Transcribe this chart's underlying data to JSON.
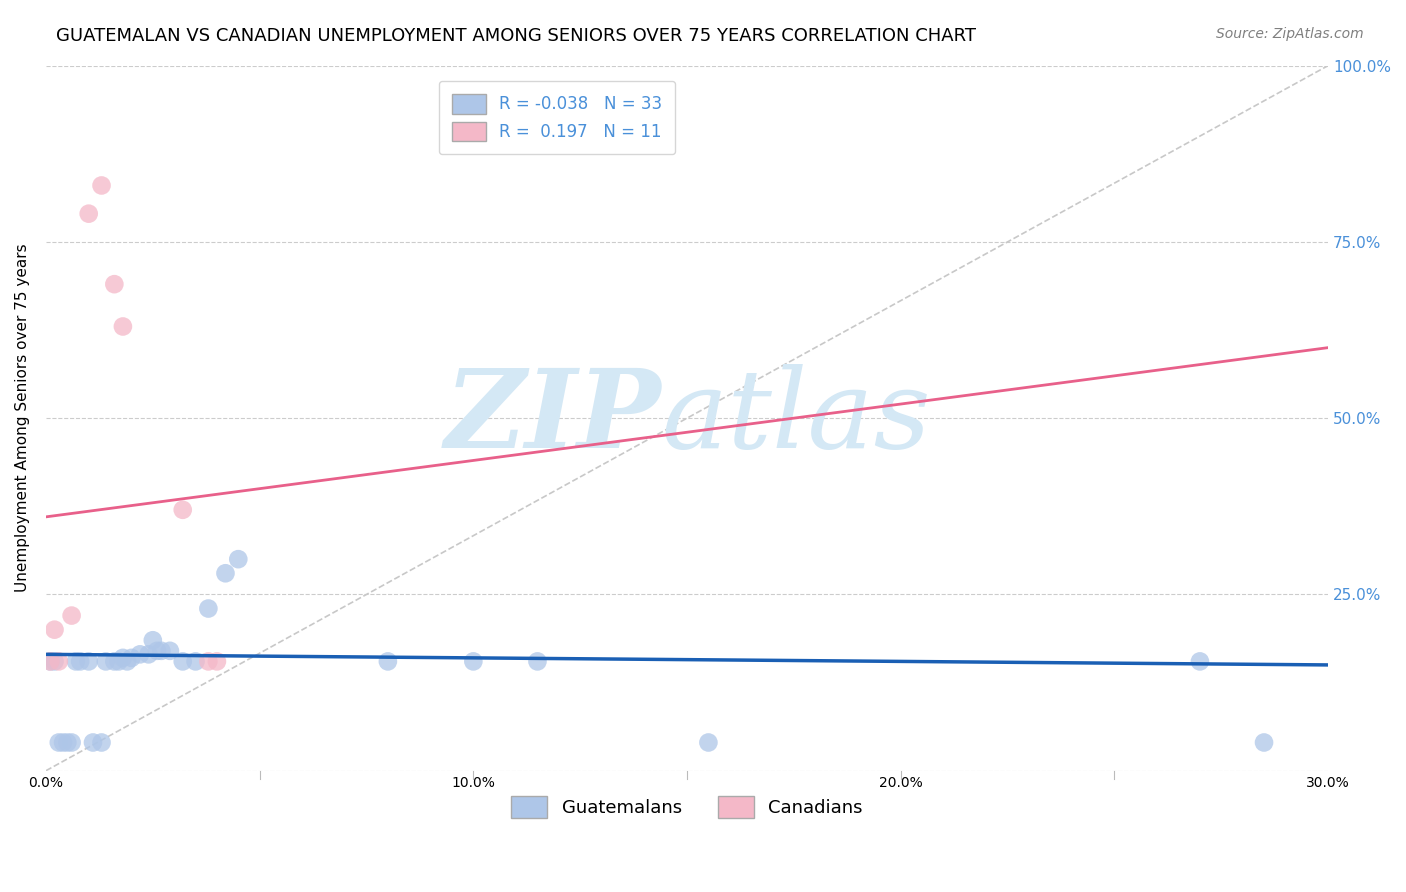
{
  "title": "GUATEMALAN VS CANADIAN UNEMPLOYMENT AMONG SENIORS OVER 75 YEARS CORRELATION CHART",
  "source": "Source: ZipAtlas.com",
  "ylabel": "Unemployment Among Seniors over 75 years",
  "xlim": [
    0.0,
    0.3
  ],
  "ylim": [
    0.0,
    1.0
  ],
  "xtick_labels": [
    "0.0%",
    "",
    "10.0%",
    "",
    "20.0%",
    "",
    "30.0%"
  ],
  "xtick_vals": [
    0.0,
    0.05,
    0.1,
    0.15,
    0.2,
    0.25,
    0.3
  ],
  "ytick_labels_right": [
    "",
    "25.0%",
    "50.0%",
    "75.0%",
    "100.0%"
  ],
  "ytick_vals": [
    0.0,
    0.25,
    0.5,
    0.75,
    1.0
  ],
  "guatemalan_scatter_x": [
    0.001,
    0.002,
    0.003,
    0.004,
    0.005,
    0.006,
    0.007,
    0.008,
    0.01,
    0.011,
    0.013,
    0.014,
    0.016,
    0.017,
    0.018,
    0.019,
    0.02,
    0.022,
    0.024,
    0.025,
    0.026,
    0.027,
    0.029,
    0.032,
    0.035,
    0.038,
    0.042,
    0.045,
    0.08,
    0.1,
    0.115,
    0.155,
    0.27,
    0.285
  ],
  "guatemalan_scatter_y": [
    0.155,
    0.155,
    0.04,
    0.04,
    0.04,
    0.04,
    0.155,
    0.155,
    0.155,
    0.04,
    0.04,
    0.155,
    0.155,
    0.155,
    0.16,
    0.155,
    0.16,
    0.165,
    0.165,
    0.185,
    0.17,
    0.17,
    0.17,
    0.155,
    0.155,
    0.23,
    0.28,
    0.3,
    0.155,
    0.155,
    0.155,
    0.04,
    0.155,
    0.04
  ],
  "canadian_scatter_x": [
    0.001,
    0.002,
    0.003,
    0.006,
    0.01,
    0.013,
    0.016,
    0.018,
    0.032,
    0.038,
    0.04
  ],
  "canadian_scatter_y": [
    0.155,
    0.2,
    0.155,
    0.22,
    0.79,
    0.83,
    0.69,
    0.63,
    0.37,
    0.155,
    0.155
  ],
  "guatemalan_trend_x": [
    0.0,
    0.3
  ],
  "guatemalan_trend_y": [
    0.165,
    0.15
  ],
  "canadian_trend_x": [
    0.0,
    0.3
  ],
  "canadian_trend_y": [
    0.36,
    0.6
  ],
  "diag_line_x": [
    0.0,
    0.3
  ],
  "diag_line_y": [
    0.0,
    1.0
  ],
  "guatemalan_color": "#aec6e8",
  "canadian_color": "#f4b8c8",
  "trend_blue_color": "#1a5fb4",
  "trend_pink_color": "#e8608a",
  "diag_color": "#c8c8c8",
  "grid_color": "#cccccc",
  "background_color": "#ffffff",
  "title_fontsize": 13,
  "source_fontsize": 10,
  "axis_label_fontsize": 11,
  "tick_fontsize": 10,
  "legend_fontsize": 12,
  "right_ytick_color": "#4a90d9",
  "watermark_color": "#d4e8f5"
}
